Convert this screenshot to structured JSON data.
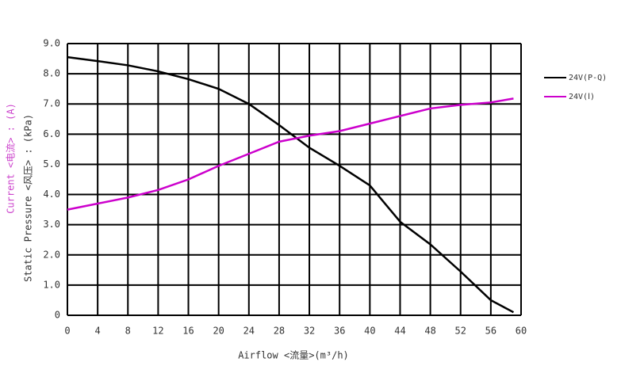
{
  "chart_data": {
    "type": "line",
    "x_label": "Airflow <流量>(m³/h)",
    "y_label": "Static Pressure <风压> : (kPa)",
    "y2_label": "Current <电流> : (A)",
    "x": [
      0,
      4,
      8,
      12,
      16,
      20,
      24,
      28,
      32,
      36,
      40,
      44,
      48,
      52,
      56,
      59
    ],
    "series": [
      {
        "name": "24V(P-Q)",
        "color": "#000000",
        "values": [
          8.55,
          8.42,
          8.28,
          8.08,
          7.82,
          7.5,
          7.0,
          6.3,
          5.55,
          4.95,
          4.3,
          3.1,
          2.35,
          1.45,
          0.5,
          0.1
        ]
      },
      {
        "name": "24V(Ⅰ)",
        "color": "#cc00cc",
        "values": [
          3.5,
          3.7,
          3.9,
          4.15,
          4.5,
          4.95,
          5.35,
          5.75,
          5.95,
          6.1,
          6.35,
          6.6,
          6.85,
          6.97,
          7.05,
          7.18
        ]
      }
    ],
    "xlim": [
      0,
      60
    ],
    "xticks": [
      0,
      4,
      8,
      12,
      16,
      20,
      24,
      28,
      32,
      36,
      40,
      44,
      48,
      52,
      56,
      60
    ],
    "ylim": [
      0,
      9
    ],
    "yticks": [
      0,
      {
        "value": 1,
        "label": "1.0"
      },
      {
        "value": 2,
        "label": "2.0"
      },
      {
        "value": 3,
        "label": "3.0"
      },
      {
        "value": 4,
        "label": "4.0"
      },
      {
        "value": 5,
        "label": "5.0"
      },
      {
        "value": 6,
        "label": "6.0"
      },
      {
        "value": 7,
        "label": "7.0"
      },
      {
        "value": 8,
        "label": "8.0"
      },
      {
        "value": 9,
        "label": "9.0"
      }
    ],
    "grid": true,
    "legend": "right"
  }
}
